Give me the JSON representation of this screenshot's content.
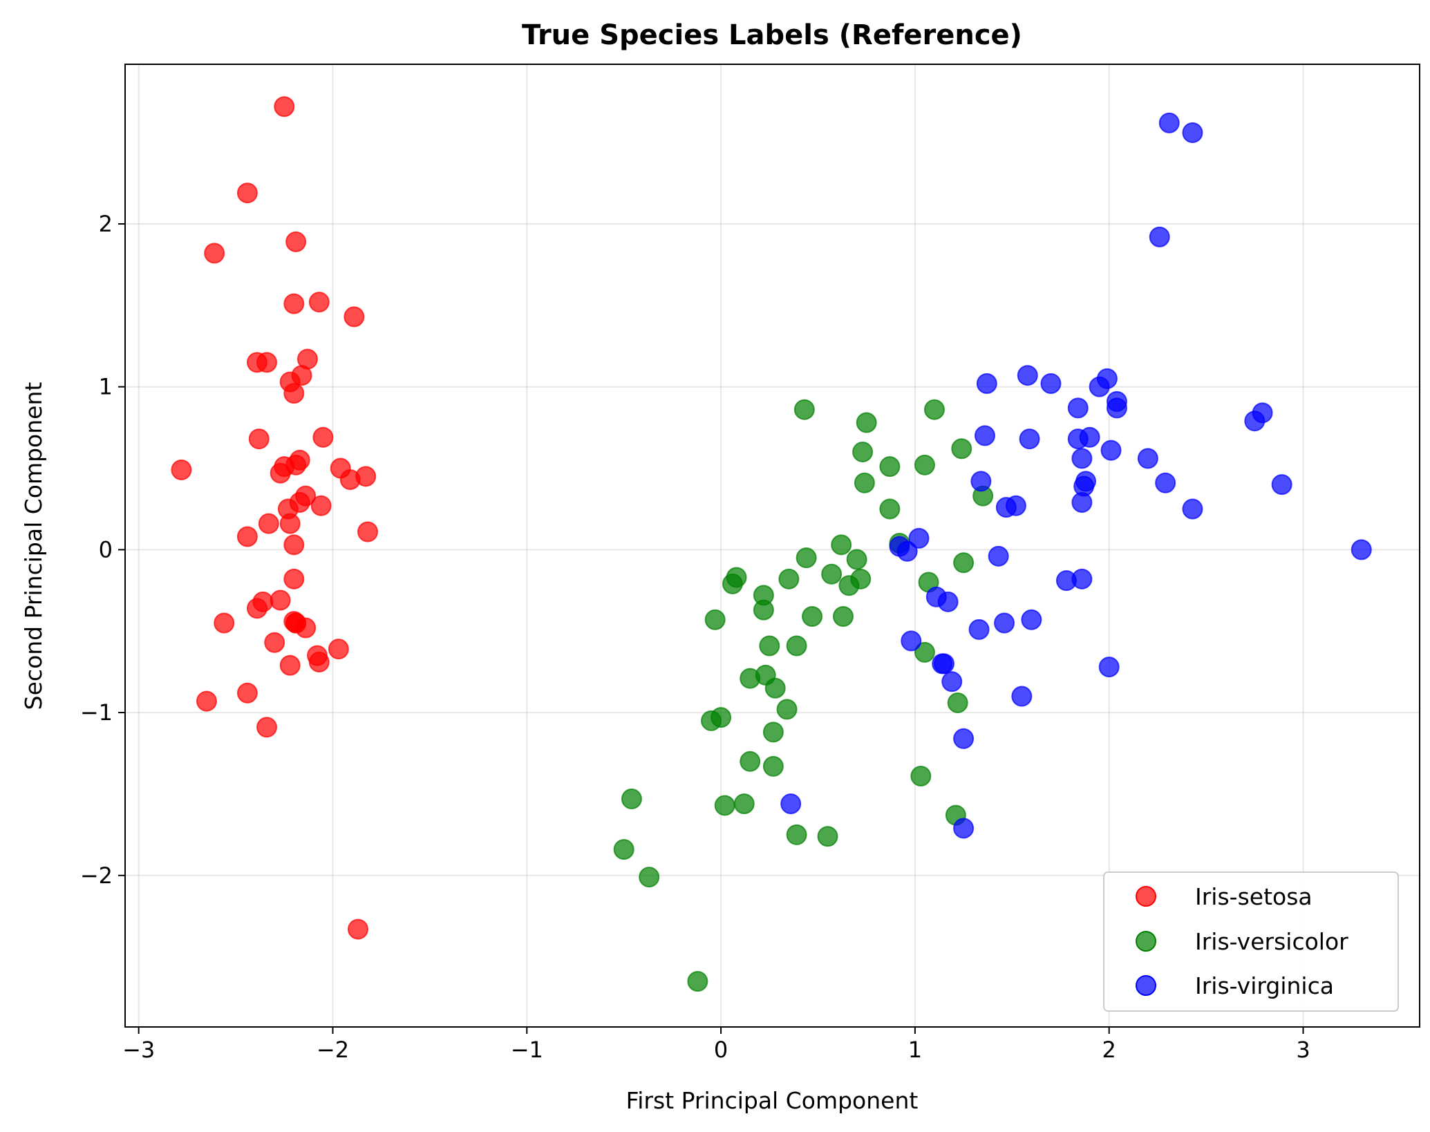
{
  "chart_data": {
    "type": "scatter",
    "title": "True Species Labels (Reference)",
    "xlabel": "First Principal Component",
    "ylabel": "Second Principal Component",
    "xlim": [
      -3.07,
      3.6
    ],
    "ylim": [
      -2.93,
      2.98
    ],
    "xticks": [
      -3,
      -2,
      -1,
      0,
      1,
      2,
      3
    ],
    "yticks": [
      -2,
      -1,
      0,
      1,
      2
    ],
    "xtick_labels": [
      "−3",
      "−2",
      "−1",
      "0",
      "1",
      "2",
      "3"
    ],
    "ytick_labels": [
      "−2",
      "−1",
      "0",
      "1",
      "2"
    ],
    "grid": true,
    "legend_position": "lower-right",
    "series": [
      {
        "name": "Iris-setosa",
        "color": "#ff0000",
        "points": [
          [
            -2.25,
            2.72
          ],
          [
            -2.44,
            2.19
          ],
          [
            -2.61,
            1.82
          ],
          [
            -2.19,
            1.89
          ],
          [
            -2.2,
            1.51
          ],
          [
            -2.07,
            1.52
          ],
          [
            -1.89,
            1.43
          ],
          [
            -2.39,
            1.15
          ],
          [
            -2.34,
            1.15
          ],
          [
            -2.13,
            1.17
          ],
          [
            -2.22,
            1.03
          ],
          [
            -2.16,
            1.07
          ],
          [
            -2.2,
            0.96
          ],
          [
            -2.38,
            0.68
          ],
          [
            -2.05,
            0.69
          ],
          [
            -2.78,
            0.49
          ],
          [
            -2.27,
            0.47
          ],
          [
            -2.25,
            0.51
          ],
          [
            -2.19,
            0.52
          ],
          [
            -2.17,
            0.55
          ],
          [
            -1.96,
            0.5
          ],
          [
            -1.91,
            0.43
          ],
          [
            -1.83,
            0.45
          ],
          [
            -2.23,
            0.25
          ],
          [
            -2.14,
            0.33
          ],
          [
            -2.17,
            0.29
          ],
          [
            -2.06,
            0.27
          ],
          [
            -2.33,
            0.16
          ],
          [
            -2.22,
            0.16
          ],
          [
            -2.44,
            0.08
          ],
          [
            -2.2,
            0.03
          ],
          [
            -1.82,
            0.11
          ],
          [
            -2.2,
            -0.18
          ],
          [
            -2.27,
            -0.31
          ],
          [
            -2.36,
            -0.32
          ],
          [
            -2.39,
            -0.36
          ],
          [
            -2.56,
            -0.45
          ],
          [
            -2.19,
            -0.45
          ],
          [
            -2.2,
            -0.44
          ],
          [
            -2.14,
            -0.48
          ],
          [
            -2.3,
            -0.57
          ],
          [
            -2.08,
            -0.65
          ],
          [
            -2.07,
            -0.69
          ],
          [
            -1.97,
            -0.61
          ],
          [
            -2.22,
            -0.71
          ],
          [
            -2.65,
            -0.93
          ],
          [
            -2.44,
            -0.88
          ],
          [
            -2.34,
            -1.09
          ],
          [
            -1.87,
            -2.33
          ],
          [
            -2.19,
            -0.45
          ]
        ]
      },
      {
        "name": "Iris-versicolor",
        "color": "#008000",
        "points": [
          [
            0.43,
            0.86
          ],
          [
            1.1,
            0.86
          ],
          [
            0.75,
            0.78
          ],
          [
            0.73,
            0.6
          ],
          [
            1.24,
            0.62
          ],
          [
            0.87,
            0.51
          ],
          [
            1.05,
            0.52
          ],
          [
            0.74,
            0.41
          ],
          [
            1.35,
            0.33
          ],
          [
            0.87,
            0.25
          ],
          [
            0.92,
            0.04
          ],
          [
            0.62,
            0.03
          ],
          [
            0.44,
            -0.05
          ],
          [
            0.7,
            -0.06
          ],
          [
            1.25,
            -0.08
          ],
          [
            0.57,
            -0.15
          ],
          [
            0.72,
            -0.18
          ],
          [
            0.66,
            -0.22
          ],
          [
            0.35,
            -0.18
          ],
          [
            0.08,
            -0.17
          ],
          [
            0.06,
            -0.21
          ],
          [
            0.22,
            -0.28
          ],
          [
            0.22,
            -0.37
          ],
          [
            1.07,
            -0.2
          ],
          [
            -0.03,
            -0.43
          ],
          [
            0.47,
            -0.41
          ],
          [
            0.63,
            -0.41
          ],
          [
            0.25,
            -0.59
          ],
          [
            0.39,
            -0.59
          ],
          [
            1.05,
            -0.63
          ],
          [
            0.23,
            -0.77
          ],
          [
            0.15,
            -0.79
          ],
          [
            0.28,
            -0.85
          ],
          [
            1.22,
            -0.94
          ],
          [
            0.34,
            -0.98
          ],
          [
            -0.05,
            -1.05
          ],
          [
            0.0,
            -1.03
          ],
          [
            0.27,
            -1.12
          ],
          [
            0.15,
            -1.3
          ],
          [
            0.27,
            -1.33
          ],
          [
            1.03,
            -1.39
          ],
          [
            0.02,
            -1.57
          ],
          [
            0.12,
            -1.56
          ],
          [
            -0.46,
            -1.53
          ],
          [
            1.21,
            -1.63
          ],
          [
            0.39,
            -1.75
          ],
          [
            0.55,
            -1.76
          ],
          [
            -0.5,
            -1.84
          ],
          [
            -0.37,
            -2.01
          ],
          [
            -0.12,
            -2.65
          ]
        ]
      },
      {
        "name": "Iris-virginica",
        "color": "#0000ff",
        "points": [
          [
            2.31,
            2.62
          ],
          [
            2.43,
            2.56
          ],
          [
            2.26,
            1.92
          ],
          [
            1.58,
            1.07
          ],
          [
            1.37,
            1.02
          ],
          [
            1.7,
            1.02
          ],
          [
            1.99,
            1.05
          ],
          [
            1.95,
            1.0
          ],
          [
            2.04,
            0.91
          ],
          [
            2.04,
            0.87
          ],
          [
            1.84,
            0.87
          ],
          [
            2.79,
            0.84
          ],
          [
            2.75,
            0.79
          ],
          [
            1.36,
            0.7
          ],
          [
            1.59,
            0.68
          ],
          [
            1.84,
            0.68
          ],
          [
            1.9,
            0.69
          ],
          [
            2.01,
            0.61
          ],
          [
            2.2,
            0.56
          ],
          [
            1.86,
            0.56
          ],
          [
            1.34,
            0.42
          ],
          [
            2.29,
            0.41
          ],
          [
            2.89,
            0.4
          ],
          [
            1.87,
            0.39
          ],
          [
            1.88,
            0.42
          ],
          [
            1.86,
            0.29
          ],
          [
            1.52,
            0.27
          ],
          [
            1.47,
            0.26
          ],
          [
            2.43,
            0.25
          ],
          [
            1.02,
            0.07
          ],
          [
            0.92,
            0.02
          ],
          [
            0.96,
            -0.01
          ],
          [
            3.3,
            0.0
          ],
          [
            1.43,
            -0.04
          ],
          [
            1.78,
            -0.19
          ],
          [
            1.86,
            -0.18
          ],
          [
            1.11,
            -0.29
          ],
          [
            1.17,
            -0.32
          ],
          [
            1.33,
            -0.49
          ],
          [
            1.46,
            -0.45
          ],
          [
            1.6,
            -0.43
          ],
          [
            0.98,
            -0.56
          ],
          [
            1.14,
            -0.7
          ],
          [
            1.15,
            -0.7
          ],
          [
            2.0,
            -0.72
          ],
          [
            1.19,
            -0.81
          ],
          [
            1.55,
            -0.9
          ],
          [
            1.25,
            -1.16
          ],
          [
            0.36,
            -1.56
          ],
          [
            1.25,
            -1.71
          ]
        ]
      }
    ]
  }
}
